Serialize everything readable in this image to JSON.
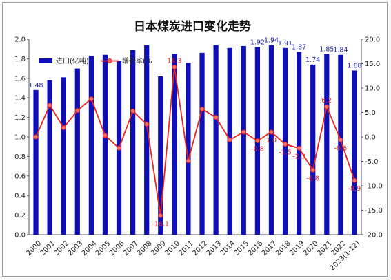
{
  "chart_data": {
    "type": "bar",
    "title": "日本煤炭进口变化走势",
    "categories": [
      "2000",
      "2001",
      "2002",
      "2003",
      "2004",
      "2005",
      "2006",
      "2007",
      "2008",
      "2009",
      "2010",
      "2011",
      "2012",
      "2013",
      "2014",
      "2015",
      "2016",
      "2017",
      "2018",
      "2019",
      "2020",
      "2021",
      "2022",
      "2023(1-12)"
    ],
    "series": [
      {
        "name": "进口(亿吨)",
        "type": "bar",
        "axis": "left",
        "color": "#0f0fb8",
        "values": [
          1.48,
          1.58,
          1.61,
          1.7,
          1.83,
          1.84,
          1.78,
          1.89,
          1.94,
          1.62,
          1.85,
          1.76,
          1.86,
          1.94,
          1.91,
          1.93,
          1.92,
          1.94,
          1.91,
          1.87,
          1.74,
          1.85,
          1.84,
          1.68
        ],
        "data_labels": [
          {
            "index": 0,
            "text": "1.48"
          },
          {
            "index": 16,
            "text": "1.92"
          },
          {
            "index": 17,
            "text": "1.94"
          },
          {
            "index": 18,
            "text": "1.91"
          },
          {
            "index": 19,
            "text": "1.87"
          },
          {
            "index": 20,
            "text": "1.74"
          },
          {
            "index": 21,
            "text": "1.85"
          },
          {
            "index": 22,
            "text": "1.84"
          },
          {
            "index": 23,
            "text": "1.68"
          }
        ]
      },
      {
        "name": "增长率(%",
        "type": "line",
        "axis": "right",
        "color": "#e8241c",
        "values": [
          0,
          6.5,
          1.9,
          5.4,
          7.8,
          0.3,
          -2.3,
          5.3,
          2.6,
          -16.1,
          14.3,
          -4.9,
          5.7,
          4.0,
          -0.6,
          1.0,
          -0.8,
          1.0,
          -1.5,
          -2.3,
          -6.8,
          6.2,
          -0.6,
          -8.9
        ],
        "data_labels": [
          {
            "index": 9,
            "text": "-16.1"
          },
          {
            "index": 10,
            "text": "14.3"
          },
          {
            "index": 16,
            "text": "-0.8"
          },
          {
            "index": 17,
            "text": "1.0"
          },
          {
            "index": 18,
            "text": "-1.5"
          },
          {
            "index": 19,
            "text": "-2.3"
          },
          {
            "index": 20,
            "text": "-6.8"
          },
          {
            "index": 21,
            "text": "6.2"
          },
          {
            "index": 22,
            "text": "-0.6"
          },
          {
            "index": 23,
            "text": "-8.9"
          }
        ]
      }
    ],
    "left_axis": {
      "ylim": [
        0,
        2.0
      ],
      "ticks": [
        "0.0",
        "0.2",
        "0.4",
        "0.6",
        "0.8",
        "1.0",
        "1.2",
        "1.4",
        "1.6",
        "1.8",
        "2.0"
      ]
    },
    "right_axis": {
      "ylim": [
        -20,
        20
      ],
      "ticks": [
        "-20.0",
        "-15.0",
        "-10.0",
        "-5.0",
        "0.0",
        "5.0",
        "10.0",
        "15.0",
        "20.0"
      ]
    },
    "grid": false,
    "legend_position": "top-left"
  }
}
